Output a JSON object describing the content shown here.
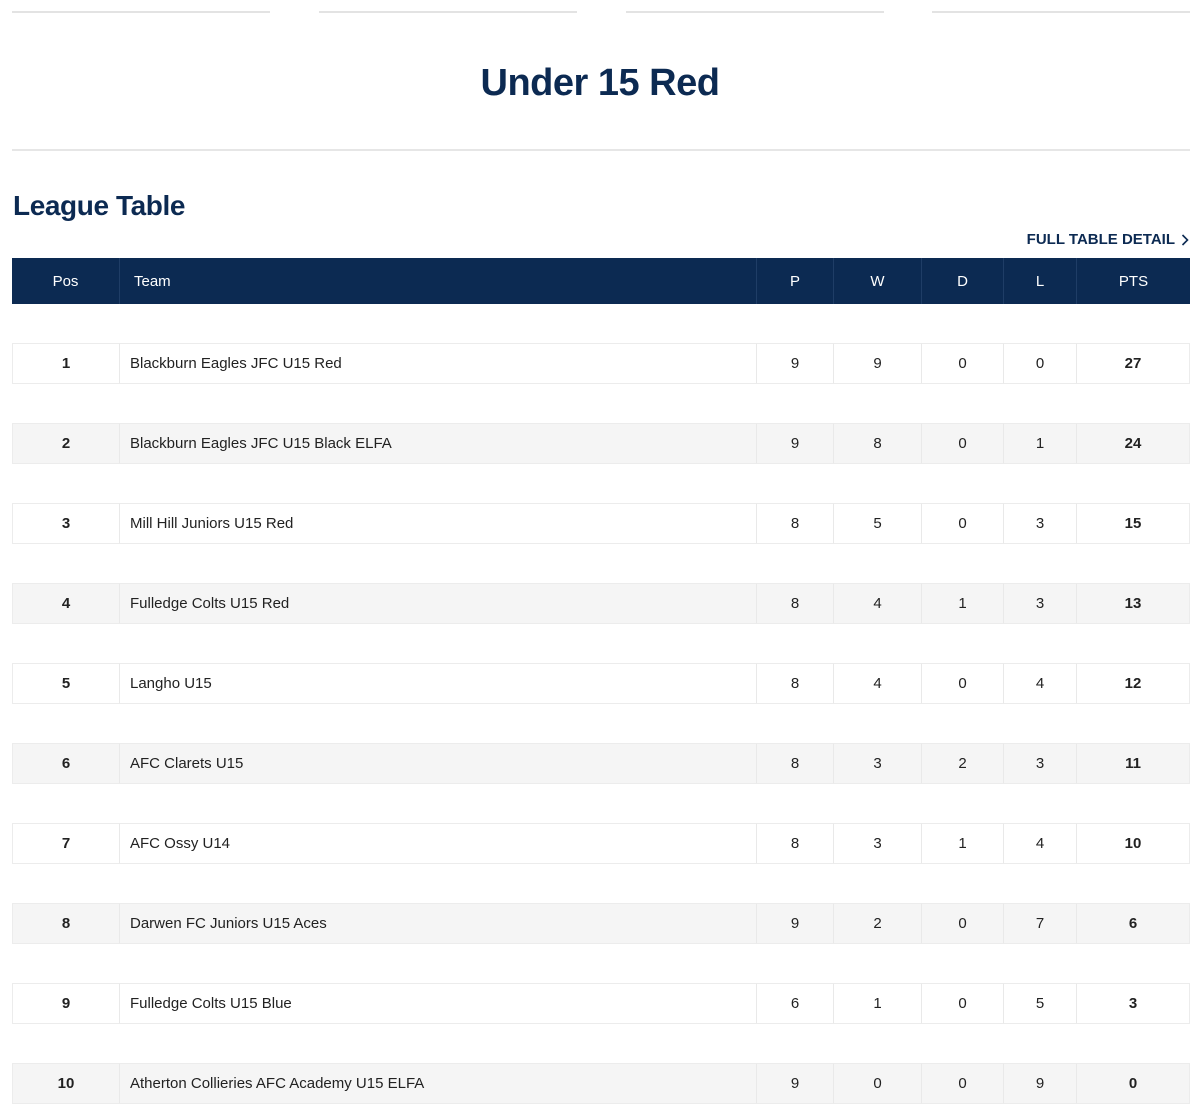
{
  "page": {
    "title": "Under 15 Red"
  },
  "league_table": {
    "section_title": "League Table",
    "full_detail_label": "FULL TABLE DETAIL",
    "columns": {
      "pos": "Pos",
      "team": "Team",
      "p": "P",
      "w": "W",
      "d": "D",
      "l": "L",
      "pts": "PTS"
    },
    "rows": [
      {
        "pos": "1",
        "team": "Blackburn Eagles JFC U15 Red",
        "p": "9",
        "w": "9",
        "d": "0",
        "l": "0",
        "pts": "27"
      },
      {
        "pos": "2",
        "team": "Blackburn Eagles JFC U15 Black ELFA",
        "p": "9",
        "w": "8",
        "d": "0",
        "l": "1",
        "pts": "24"
      },
      {
        "pos": "3",
        "team": "Mill Hill Juniors U15 Red",
        "p": "8",
        "w": "5",
        "d": "0",
        "l": "3",
        "pts": "15"
      },
      {
        "pos": "4",
        "team": "Fulledge Colts U15 Red",
        "p": "8",
        "w": "4",
        "d": "1",
        "l": "3",
        "pts": "13"
      },
      {
        "pos": "5",
        "team": "Langho U15",
        "p": "8",
        "w": "4",
        "d": "0",
        "l": "4",
        "pts": "12"
      },
      {
        "pos": "6",
        "team": "AFC Clarets U15",
        "p": "8",
        "w": "3",
        "d": "2",
        "l": "3",
        "pts": "11"
      },
      {
        "pos": "7",
        "team": "AFC Ossy U14",
        "p": "8",
        "w": "3",
        "d": "1",
        "l": "4",
        "pts": "10"
      },
      {
        "pos": "8",
        "team": "Darwen FC Juniors U15 Aces",
        "p": "9",
        "w": "2",
        "d": "0",
        "l": "7",
        "pts": "6"
      },
      {
        "pos": "9",
        "team": "Fulledge Colts U15 Blue",
        "p": "6",
        "w": "1",
        "d": "0",
        "l": "5",
        "pts": "3"
      },
      {
        "pos": "10",
        "team": "Atherton Collieries AFC Academy U15 ELFA",
        "p": "9",
        "w": "0",
        "d": "0",
        "l": "9",
        "pts": "0"
      }
    ]
  },
  "theme": {
    "primary_navy": "#0c2a52",
    "row_alt": "#f5f5f5"
  },
  "icons": {
    "full_detail": "chevron-right-icon"
  }
}
